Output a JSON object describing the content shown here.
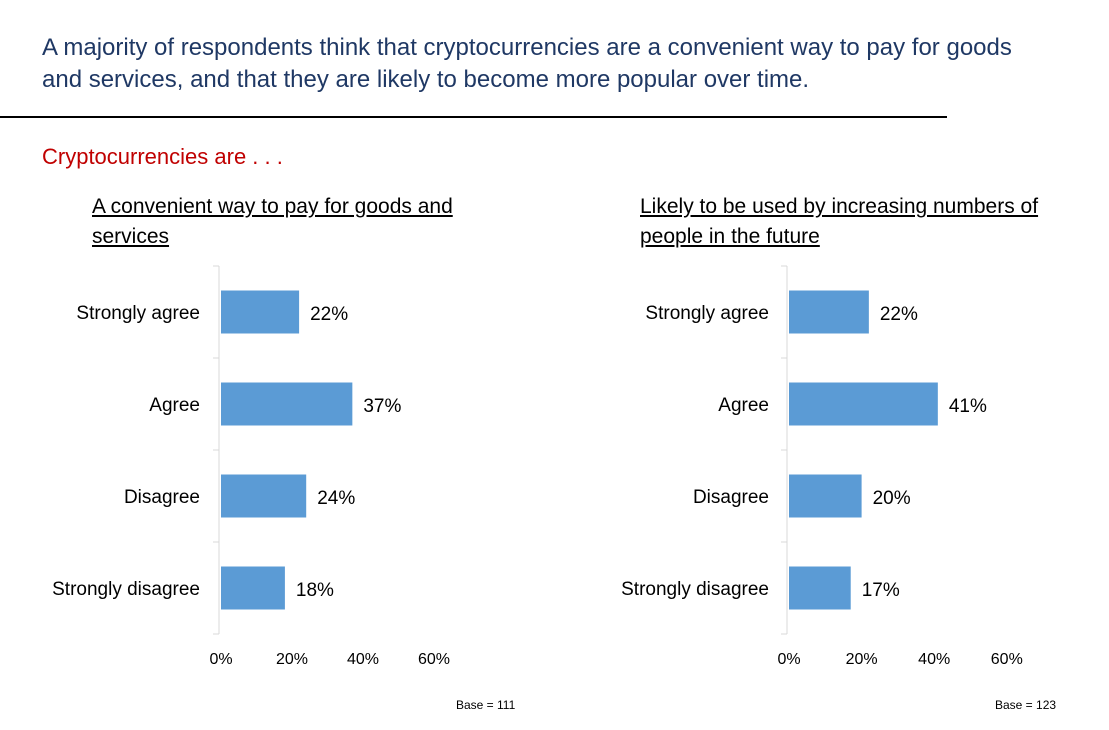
{
  "headline": "A majority of respondents think that cryptocurrencies are a convenient way to pay for goods and services, and that they are likely to become more popular over time.",
  "subheading": "Cryptocurrencies are . . .",
  "colors": {
    "bar": "#5b9bd5",
    "headline": "#1f3864",
    "subheading": "#c00000",
    "axis": "#d9d9d9"
  },
  "chart_data": [
    {
      "type": "bar",
      "orientation": "horizontal",
      "title": "A convenient way to pay for goods and services",
      "categories": [
        "Strongly agree",
        "Agree",
        "Disagree",
        "Strongly disagree"
      ],
      "values": [
        22,
        37,
        24,
        18
      ],
      "value_labels": [
        "22%",
        "37%",
        "24%",
        "18%"
      ],
      "xlim": [
        0,
        60
      ],
      "x_ticks": [
        "0%",
        "20%",
        "40%",
        "60%"
      ],
      "grid": false,
      "note": "Base = 111"
    },
    {
      "type": "bar",
      "orientation": "horizontal",
      "title": "Likely to be used by increasing numbers of people in the future",
      "categories": [
        "Strongly agree",
        "Agree",
        "Disagree",
        "Strongly disagree"
      ],
      "values": [
        22,
        41,
        20,
        17
      ],
      "value_labels": [
        "22%",
        "41%",
        "20%",
        "17%"
      ],
      "xlim": [
        0,
        60
      ],
      "x_ticks": [
        "0%",
        "20%",
        "40%",
        "60%"
      ],
      "grid": false,
      "note": "Base = 123"
    }
  ]
}
